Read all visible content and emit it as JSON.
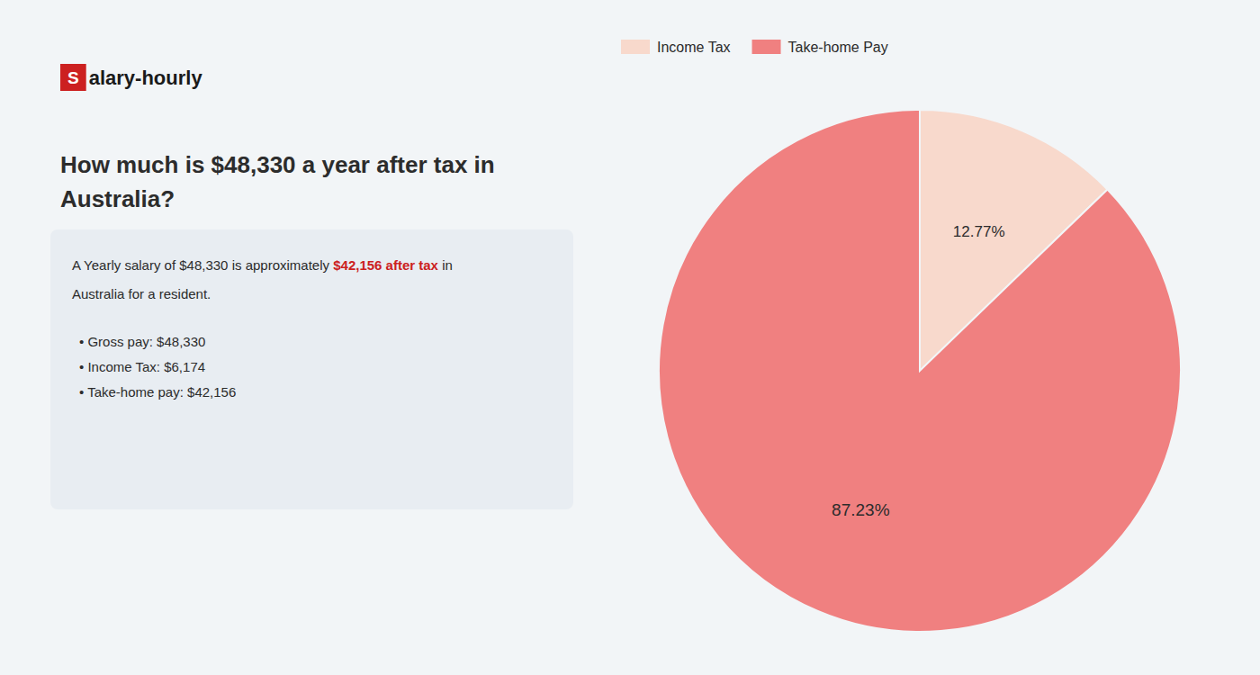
{
  "chart_data": {
    "type": "pie",
    "title": "How much is $48,330 a year after tax in\nAustralia?",
    "categories": [
      "Income Tax",
      "Take-home Pay"
    ],
    "values": [
      12.77,
      87.23
    ],
    "value_labels": [
      "12.77%",
      "87.23%"
    ],
    "colors": [
      "#f8d9cc",
      "#f08080"
    ],
    "data_labels": true,
    "legend": "upper left",
    "annotations": [
      {
        "text": "S",
        "color": "#cc2020"
      },
      {
        "text": "alary-hourly"
      },
      {
        "text": "A Yearly salary of $48,330 is approximately"
      },
      {
        "text": "$42,156 after tax",
        "color": "#cc2020"
      },
      {
        "text": "in"
      },
      {
        "text": "Australia for a resident."
      },
      {
        "text": "•  Gross pay: $48,330"
      },
      {
        "text": "•  Income Tax: $6,174"
      },
      {
        "text": "•  Take-home pay: $42,156"
      }
    ]
  }
}
